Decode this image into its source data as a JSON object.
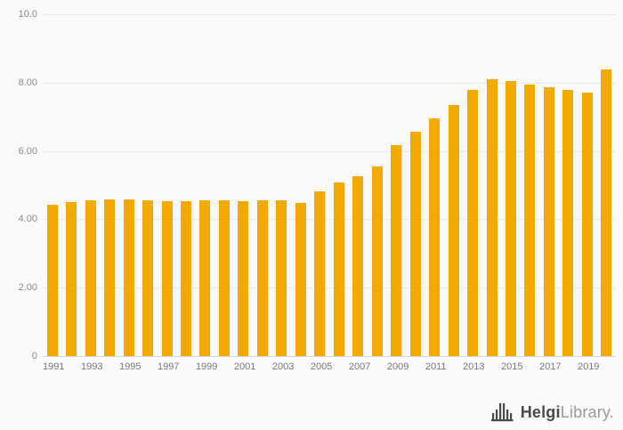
{
  "chart_data": {
    "type": "bar",
    "title": "",
    "xlabel": "",
    "ylabel": "",
    "categories": [
      "1991",
      "1992",
      "1993",
      "1994",
      "1995",
      "1996",
      "1997",
      "1998",
      "1999",
      "2000",
      "2001",
      "2002",
      "2003",
      "2004",
      "2005",
      "2006",
      "2007",
      "2008",
      "2009",
      "2010",
      "2011",
      "2012",
      "2013",
      "2014",
      "2015",
      "2016",
      "2017",
      "2018",
      "2019",
      "2020"
    ],
    "values": [
      4.43,
      4.5,
      4.56,
      4.58,
      4.58,
      4.56,
      4.54,
      4.54,
      4.56,
      4.56,
      4.54,
      4.56,
      4.56,
      4.48,
      4.83,
      5.07,
      5.26,
      5.56,
      6.16,
      6.56,
      6.95,
      7.35,
      7.79,
      8.09,
      8.04,
      7.94,
      7.87,
      7.78,
      7.7,
      8.38
    ],
    "ylim": [
      0,
      10
    ],
    "ytick_labels": [
      "10.0",
      "8.00",
      "6.00",
      "4.00",
      "2.00",
      "0"
    ],
    "ytick_values": [
      10,
      8,
      6,
      4,
      2,
      0
    ],
    "xtick_labels": [
      "1991",
      "1993",
      "1995",
      "1997",
      "1999",
      "2001",
      "2003",
      "2005",
      "2007",
      "2009",
      "2011",
      "2013",
      "2015",
      "2017",
      "2019"
    ],
    "grid": true,
    "legend_position": "none"
  },
  "branding": {
    "logo_text_primary": "Helgi",
    "logo_text_secondary": "Library",
    "logo_dot": ".",
    "logo_icon": "bridge-icon"
  },
  "colors": {
    "background": "#fafafa",
    "bar": "#F2A900",
    "grid": "#e9e9e9",
    "axis": "#d6d6d6",
    "ytick_text": "#8c8c8c",
    "xtick_text": "#7a7a7a",
    "logo_primary": "#4a4a4a",
    "logo_secondary": "#9b9b9b"
  }
}
